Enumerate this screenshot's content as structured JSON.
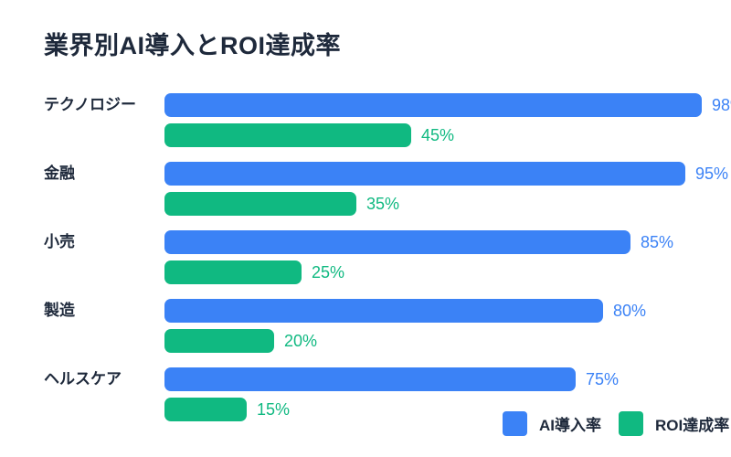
{
  "title": "業界別AI導入とROI達成率",
  "colors": {
    "ai_series": "#3b82f6",
    "roi_series": "#10b981",
    "heading_text": "#1e293b",
    "background": "#ffffff"
  },
  "legend": {
    "items": [
      {
        "label": "AI導入率",
        "color": "#3b82f6"
      },
      {
        "label": "ROI達成率",
        "color": "#10b981"
      }
    ]
  },
  "chart_data": {
    "type": "bar",
    "orientation": "horizontal",
    "title": "業界別AI導入とROI達成率",
    "categories": [
      "テクノロジー",
      "金融",
      "小売",
      "製造",
      "ヘルスケア"
    ],
    "series": [
      {
        "name": "AI導入率",
        "color": "#3b82f6",
        "values": [
          98,
          95,
          85,
          80,
          75
        ]
      },
      {
        "name": "ROI達成率",
        "color": "#10b981",
        "values": [
          45,
          35,
          25,
          20,
          15
        ]
      }
    ],
    "value_suffix": "%",
    "value_labels_shown": true,
    "xlim": [
      0,
      100
    ],
    "grid": false,
    "axes_shown": false,
    "legend_position": "bottom-right"
  }
}
